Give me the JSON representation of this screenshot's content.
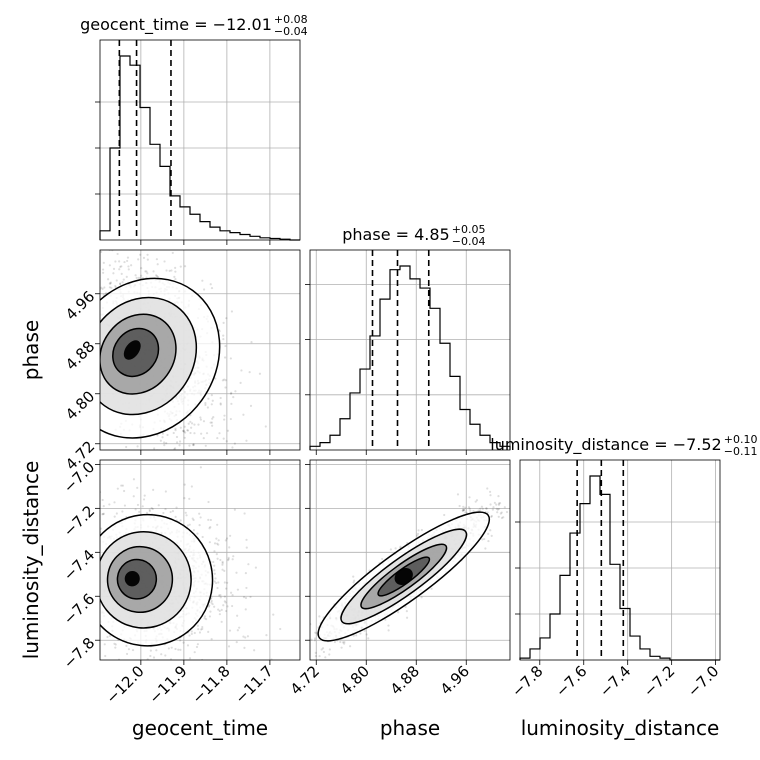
{
  "chart_data": {
    "type": "corner",
    "parameters": [
      "geocent_time",
      "phase",
      "luminosity_distance"
    ],
    "titles": [
      {
        "param": "geocent_time",
        "text": "geocent_time = −12.01",
        "plus": "+0.08",
        "minus": "−0.04"
      },
      {
        "param": "phase",
        "text": "phase = 4.85",
        "plus": "+0.05",
        "minus": "−0.04"
      },
      {
        "param": "luminosity_distance",
        "text": "luminosity_distance = −7.52",
        "plus": "+0.10",
        "minus": "−0.11"
      }
    ],
    "axis_labels": {
      "x": [
        "geocent_time",
        "phase",
        "luminosity_distance"
      ],
      "y": [
        "phase",
        "luminosity_distance"
      ]
    },
    "ranges": {
      "geocent_time": [
        -12.095,
        -11.63
      ],
      "phase": [
        4.71,
        5.03
      ],
      "luminosity_distance": [
        -7.89,
        -6.98
      ]
    },
    "ticks": {
      "geocent_time": [
        {
          "v": -12.0,
          "label": "−12.0"
        },
        {
          "v": -11.9,
          "label": "−11.9"
        },
        {
          "v": -11.8,
          "label": "−11.8"
        },
        {
          "v": -11.7,
          "label": "−11.7"
        }
      ],
      "phase": [
        {
          "v": 4.72,
          "label": "4.72"
        },
        {
          "v": 4.8,
          "label": "4.80"
        },
        {
          "v": 4.88,
          "label": "4.88"
        },
        {
          "v": 4.96,
          "label": "4.96"
        }
      ],
      "luminosity_distance": [
        {
          "v": -7.8,
          "label": "−7.8"
        },
        {
          "v": -7.6,
          "label": "−7.6"
        },
        {
          "v": -7.4,
          "label": "−7.4"
        },
        {
          "v": -7.2,
          "label": "−7.2"
        },
        {
          "v": -7.0,
          "label": "−7.0"
        }
      ]
    },
    "quantiles": {
      "geocent_time": [
        -12.05,
        -12.01,
        -11.93
      ],
      "phase": [
        4.81,
        4.85,
        4.9
      ],
      "luminosity_distance": [
        -7.63,
        -7.52,
        -7.42
      ]
    },
    "histograms": {
      "geocent_time": [
        0.05,
        0.5,
        1.0,
        0.95,
        0.72,
        0.52,
        0.4,
        0.24,
        0.18,
        0.14,
        0.1,
        0.07,
        0.05,
        0.04,
        0.03,
        0.02,
        0.012,
        0.008,
        0.004,
        0.0
      ],
      "phase": [
        0.02,
        0.04,
        0.08,
        0.17,
        0.31,
        0.44,
        0.62,
        0.82,
        0.98,
        1.0,
        0.93,
        0.88,
        0.77,
        0.58,
        0.4,
        0.22,
        0.14,
        0.08,
        0.04,
        0.02
      ],
      "luminosity_distance": [
        0.01,
        0.06,
        0.12,
        0.25,
        0.46,
        0.69,
        0.85,
        1.0,
        0.9,
        0.52,
        0.28,
        0.13,
        0.06,
        0.02,
        0.01,
        0.0,
        0.0,
        0.0,
        0.0,
        0.0
      ]
    },
    "density_peaks": [
      {
        "x": "geocent_time",
        "y": "phase",
        "mean": [
          -12.02,
          4.87
        ],
        "sd": [
          0.045,
          0.05
        ],
        "corr": -0.45
      },
      {
        "x": "geocent_time",
        "y": "luminosity_distance",
        "mean": [
          -12.02,
          -7.52
        ],
        "sd": [
          0.05,
          0.1
        ],
        "corr": -0.1
      },
      {
        "x": "phase",
        "y": "luminosity_distance",
        "mean": [
          4.86,
          -7.51
        ],
        "sd": [
          0.045,
          0.1
        ],
        "corr": 0.93
      }
    ],
    "grid": true
  }
}
